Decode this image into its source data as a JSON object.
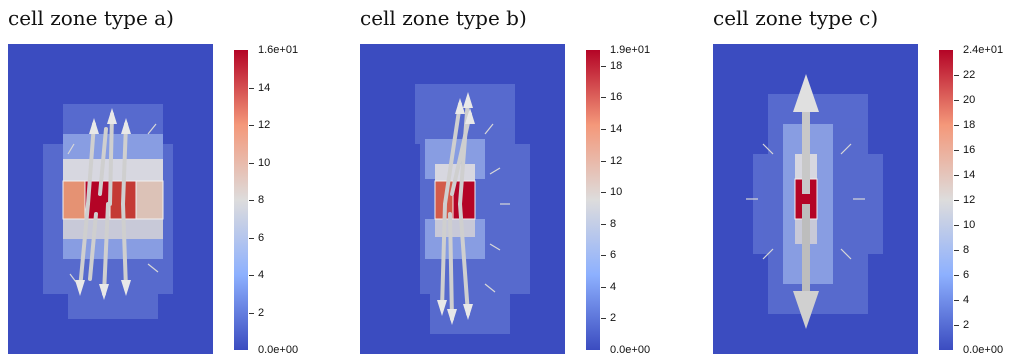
{
  "panels": [
    {
      "title": "cell zone type a)",
      "colorbar": {
        "max_label": "1.6e+01",
        "min_label": "0.0e+00",
        "max": 16,
        "ticks": [
          "14",
          "12",
          "10",
          "8",
          "6",
          "4",
          "2"
        ]
      }
    },
    {
      "title": "cell zone type b)",
      "colorbar": {
        "max_label": "1.9e+01",
        "min_label": "0.0e+00",
        "max": 19,
        "ticks": [
          "18",
          "16",
          "14",
          "12",
          "10",
          "8",
          "6",
          "4",
          "2"
        ]
      }
    },
    {
      "title": "cell zone type c)",
      "colorbar": {
        "max_label": "2.4e+01",
        "min_label": "0.0e+00",
        "max": 24,
        "ticks": [
          "22",
          "20",
          "18",
          "16",
          "14",
          "12",
          "10",
          "8",
          "6",
          "4",
          "2"
        ]
      }
    }
  ],
  "colormap": {
    "low": "#3b4cc0",
    "high": "#b40426",
    "mid": "#dddcdc"
  }
}
